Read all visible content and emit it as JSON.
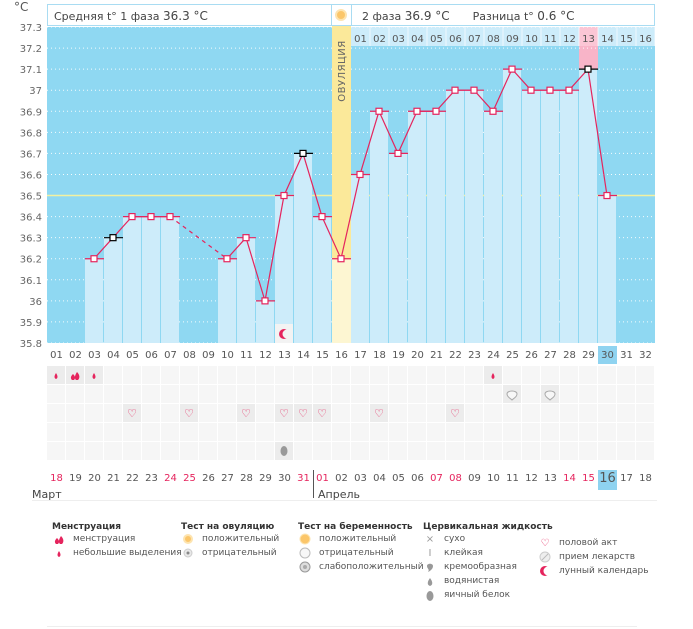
{
  "header": {
    "unit": "°C",
    "phase1_label": "Средняя t° 1 фаза",
    "phase1_value": "36.3 °C",
    "phase2_label": "2 фаза",
    "phase2_value": "36.9 °C",
    "diff_label": "Разница t°",
    "diff_value": "0.6 °C",
    "ovulation_label": "ОВУЛЯЦИЯ"
  },
  "colors": {
    "sky": "#8fd8f2",
    "bar": "#cdecfa",
    "ovulation": "#fbe99a",
    "line": "#e5245d",
    "coverline": "#f3f1a0",
    "highlight": "#f8b4c8"
  },
  "chart_data": {
    "type": "bar",
    "title": "",
    "xlabel": "",
    "ylabel": "°C",
    "ylim": [
      35.8,
      37.3
    ],
    "yticks": [
      "37.3",
      "37.2",
      "37.1",
      "37",
      "36.9",
      "36.8",
      "36.7",
      "36.6",
      "36.5",
      "36.4",
      "36.3",
      "36.2",
      "36.1",
      "36",
      "35.9",
      "35.8"
    ],
    "coverline": 36.5,
    "cycle_days": [
      "01",
      "02",
      "03",
      "04",
      "05",
      "06",
      "07",
      "08",
      "09",
      "10",
      "11",
      "12",
      "13",
      "14",
      "15",
      "16",
      "17",
      "18",
      "19",
      "20",
      "21",
      "22",
      "23",
      "24",
      "25",
      "26",
      "27",
      "28",
      "29",
      "30",
      "31",
      "32"
    ],
    "second_phase_days": [
      "01",
      "02",
      "03",
      "04",
      "05",
      "06",
      "07",
      "08",
      "09",
      "10",
      "11",
      "12",
      "13",
      "14",
      "15",
      "16"
    ],
    "ovulation_day": 16,
    "current_day": 30,
    "highlight_day": 29,
    "series": [
      {
        "name": "Базальная температура",
        "values": [
          null,
          null,
          36.2,
          36.3,
          36.4,
          36.4,
          36.4,
          null,
          null,
          36.2,
          36.3,
          36.0,
          36.5,
          36.7,
          36.4,
          36.2,
          36.6,
          36.9,
          36.7,
          36.9,
          36.9,
          37.0,
          37.0,
          36.9,
          37.1,
          37.0,
          37.0,
          37.0,
          37.1,
          36.5,
          null,
          null
        ],
        "excluded_days": [
          4,
          14,
          29
        ],
        "dashed_segments": [
          [
            7,
            10
          ]
        ]
      }
    ],
    "moon_day": 13
  },
  "calendar": {
    "dates": [
      "18",
      "19",
      "20",
      "21",
      "22",
      "23",
      "24",
      "25",
      "26",
      "27",
      "28",
      "29",
      "30",
      "31",
      "01",
      "02",
      "03",
      "04",
      "05",
      "06",
      "07",
      "08",
      "09",
      "10",
      "11",
      "12",
      "13",
      "14",
      "15",
      "16",
      "17",
      "18"
    ],
    "red_indices": [
      0,
      6,
      7,
      13,
      14,
      20,
      21,
      27,
      28
    ],
    "today_index": 29,
    "month1": "Март",
    "month2": "Апрель",
    "rows": {
      "menstruation": {
        "0": "small",
        "1": "heavy",
        "2": "small",
        "23": "small"
      },
      "pregnancy_test": {
        "24": "negative",
        "26": "negative"
      },
      "intercourse": [
        4,
        7,
        10,
        12,
        13,
        14,
        17,
        21
      ],
      "empty": [],
      "cervical": {
        "12": "egg-white"
      }
    }
  },
  "legend": {
    "menstruation": {
      "title": "Менструация",
      "items": [
        "менструация",
        "небольшие выделения"
      ]
    },
    "ovulation_test": {
      "title": "Тест на овуляцию",
      "items": [
        "положительный",
        "отрицательный"
      ]
    },
    "pregnancy_test": {
      "title": "Тест на беременность",
      "items": [
        "положительный",
        "отрицательный",
        "слабоположительный"
      ]
    },
    "cervical": {
      "title": "Цервикальная жидкость",
      "items": [
        "сухо",
        "клейкая",
        "кремообразная",
        "водянистая",
        "яичный белок"
      ]
    },
    "other": {
      "items": [
        "половой акт",
        "прием лекарств",
        "лунный календарь"
      ]
    }
  }
}
